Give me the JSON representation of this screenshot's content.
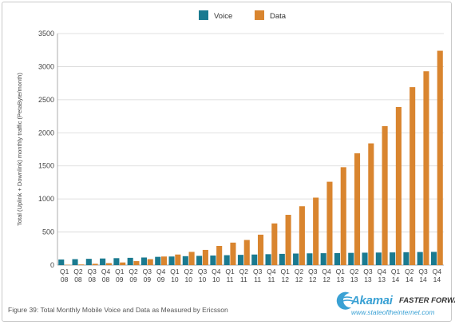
{
  "chart_data": {
    "type": "bar",
    "ylabel": "Total (Uplink + Downlink) monthly traffic (PetaByte/month)",
    "xlabel": "",
    "ylim": [
      0,
      3500
    ],
    "yticks": [
      0,
      500,
      1000,
      1500,
      2000,
      2500,
      3000,
      3500
    ],
    "grid": true,
    "legend": "top-center",
    "categories": [
      "Q1 08",
      "Q2 08",
      "Q3 08",
      "Q4 08",
      "Q1 09",
      "Q2 09",
      "Q3 09",
      "Q4 09",
      "Q1 10",
      "Q2 10",
      "Q3 10",
      "Q4 10",
      "Q1 11",
      "Q2 11",
      "Q3 11",
      "Q4 11",
      "Q1 12",
      "Q2 12",
      "Q3 12",
      "Q4 12",
      "Q1 13",
      "Q2 13",
      "Q3 13",
      "Q4 13",
      "Q1 14",
      "Q2 14",
      "Q3 14",
      "Q4 14"
    ],
    "series": [
      {
        "name": "Voice",
        "color": "#1a7a90",
        "values": [
          85,
          90,
          95,
          100,
          105,
          110,
          115,
          125,
          130,
          135,
          140,
          145,
          150,
          155,
          160,
          165,
          170,
          175,
          178,
          180,
          182,
          185,
          188,
          190,
          192,
          195,
          198,
          200
        ]
      },
      {
        "name": "Data",
        "color": "#d9852f",
        "values": [
          5,
          10,
          20,
          30,
          40,
          60,
          90,
          130,
          160,
          200,
          230,
          290,
          340,
          380,
          460,
          630,
          760,
          890,
          1020,
          1260,
          1480,
          1690,
          1840,
          2100,
          2390,
          2690,
          2930,
          3240
        ]
      }
    ]
  },
  "caption": "Figure 39: Total Monthly Mobile Voice and Data as Measured by Ericsson",
  "brand": {
    "name": "Akamai",
    "tagline": "FASTER FORWARD",
    "url": "www.stateoftheinternet.com"
  }
}
